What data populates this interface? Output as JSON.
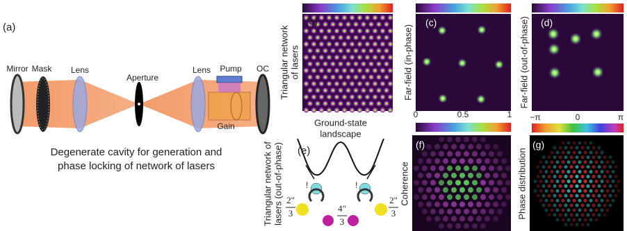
{
  "panels": {
    "a": {
      "label": "(a)",
      "components": [
        "Mirror",
        "Mask",
        "Lens",
        "Aperture",
        "Lens",
        "Pump",
        "OC",
        "Gain"
      ],
      "caption": [
        "Degenerate cavity for generation and",
        "phase locking of network of lasers"
      ]
    },
    "b": {
      "label": "(b)",
      "side_title": [
        "Triangular network",
        "of lasers"
      ]
    },
    "c": {
      "label": "(c)",
      "side_title": "Far-field (in-phase)",
      "colorbar_ticks": [
        "0",
        "0.5",
        "1"
      ]
    },
    "d": {
      "label": "(d)",
      "side_title": "Far-field (out-of-phase)"
    },
    "e": {
      "label": "(e)",
      "title": [
        "Ground-state",
        "landscape"
      ],
      "side_title": [
        "Triangular network of",
        "lasers (out-of-phase)"
      ],
      "marks": [
        "!",
        "!"
      ],
      "phases": [
        {
          "num": "2\"",
          "den": "3"
        },
        {
          "num": "4\"",
          "den": "3"
        },
        {
          "num": "2\"",
          "den": "3"
        }
      ]
    },
    "f": {
      "label": "(f)",
      "side_title": "Coherence"
    },
    "g": {
      "label": "(g)",
      "side_title": "Phase distribution",
      "colorbar_ticks": [
        "−π",
        "0",
        "π"
      ]
    }
  }
}
